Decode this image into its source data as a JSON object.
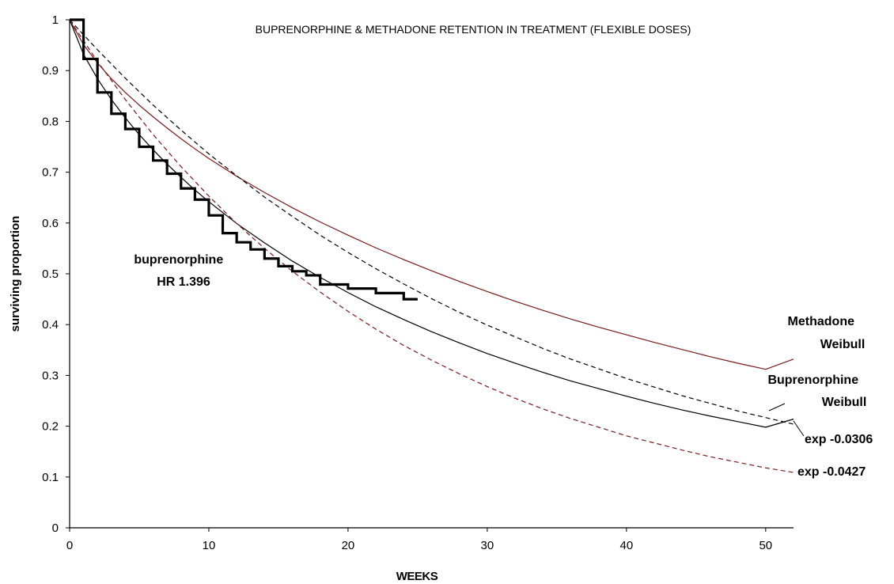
{
  "chart_data": {
    "type": "line",
    "title": "BUPRENORPHINE & METHADONE RETENTION IN TREATMENT (FLEXIBLE DOSES)",
    "xlabel": "WEEKS",
    "ylabel": "surviving proportion",
    "xlim": [
      0,
      52
    ],
    "ylim": [
      0,
      1
    ],
    "x_ticks": [
      "0",
      "10",
      "20",
      "30",
      "40",
      "50"
    ],
    "y_ticks": [
      "0",
      "0.1",
      "0.2",
      "0.3",
      "0.4",
      "0.5",
      "0.6",
      "0.7",
      "0.8",
      "0.9",
      "1"
    ],
    "grid": false,
    "legend": "none",
    "series": [
      {
        "name": "Methadone Weibull",
        "style": "solid",
        "color": "#7a1a1a",
        "x": [
          0,
          1,
          2,
          3,
          4,
          5,
          6,
          7,
          8,
          9,
          10,
          12,
          14,
          16,
          18,
          20,
          22,
          24,
          26,
          28,
          30,
          32,
          34,
          36,
          38,
          40,
          42,
          44,
          46,
          48,
          50,
          52
        ],
        "y": [
          1.0,
          0.951,
          0.915,
          0.884,
          0.857,
          0.832,
          0.809,
          0.787,
          0.766,
          0.746,
          0.727,
          0.692,
          0.66,
          0.63,
          0.602,
          0.576,
          0.551,
          0.528,
          0.506,
          0.485,
          0.465,
          0.446,
          0.428,
          0.411,
          0.395,
          0.38,
          0.365,
          0.351,
          0.337,
          0.324,
          0.312,
          0.332
        ]
      },
      {
        "name": "Buprenorphine Weibull",
        "style": "solid",
        "color": "#000000",
        "x": [
          0,
          1,
          2,
          3,
          4,
          5,
          6,
          7,
          8,
          9,
          10,
          12,
          14,
          16,
          18,
          20,
          22,
          24,
          26,
          28,
          30,
          32,
          34,
          36,
          38,
          40,
          42,
          44,
          46,
          48,
          50,
          52
        ],
        "y": [
          1.0,
          0.932,
          0.884,
          0.843,
          0.807,
          0.774,
          0.744,
          0.716,
          0.69,
          0.665,
          0.642,
          0.599,
          0.561,
          0.525,
          0.493,
          0.463,
          0.435,
          0.41,
          0.386,
          0.364,
          0.343,
          0.324,
          0.306,
          0.289,
          0.274,
          0.259,
          0.245,
          0.232,
          0.22,
          0.209,
          0.198,
          0.214
        ]
      },
      {
        "name": "exp -0.0306",
        "style": "dashed",
        "color": "#000000",
        "x": [
          0,
          2,
          4,
          6,
          8,
          10,
          12,
          14,
          16,
          18,
          20,
          22,
          24,
          26,
          28,
          30,
          32,
          34,
          36,
          38,
          40,
          42,
          44,
          46,
          48,
          50,
          52
        ],
        "y": [
          1.0,
          0.941,
          0.885,
          0.832,
          0.783,
          0.736,
          0.693,
          0.651,
          0.613,
          0.576,
          0.542,
          0.51,
          0.48,
          0.451,
          0.424,
          0.399,
          0.376,
          0.353,
          0.332,
          0.313,
          0.294,
          0.277,
          0.26,
          0.245,
          0.23,
          0.217,
          0.204
        ]
      },
      {
        "name": "exp -0.0427",
        "style": "dashed",
        "color": "#7a1a1a",
        "x": [
          0,
          2,
          4,
          6,
          8,
          10,
          12,
          14,
          16,
          18,
          20,
          22,
          24,
          26,
          28,
          30,
          32,
          34,
          36,
          38,
          40,
          42,
          44,
          46,
          48,
          50,
          52
        ],
        "y": [
          1.0,
          0.918,
          0.843,
          0.774,
          0.711,
          0.653,
          0.599,
          0.55,
          0.505,
          0.464,
          0.426,
          0.391,
          0.359,
          0.33,
          0.303,
          0.278,
          0.255,
          0.234,
          0.215,
          0.198,
          0.181,
          0.167,
          0.153,
          0.14,
          0.129,
          0.118,
          0.109
        ]
      },
      {
        "name": "buprenorphine HR 1.396",
        "style": "step",
        "color": "#000000",
        "x": [
          0,
          1,
          2,
          3,
          4,
          5,
          6,
          7,
          8,
          9,
          10,
          11,
          12,
          13,
          14,
          15,
          16,
          17,
          18,
          20,
          22,
          24,
          25
        ],
        "y": [
          1.0,
          0.923,
          0.857,
          0.815,
          0.785,
          0.75,
          0.723,
          0.697,
          0.668,
          0.646,
          0.615,
          0.58,
          0.562,
          0.548,
          0.53,
          0.515,
          0.505,
          0.497,
          0.479,
          0.471,
          0.462,
          0.45,
          0.45
        ]
      }
    ],
    "annotations": [
      {
        "lines": [
          "Methadone",
          "Weibull"
        ]
      },
      {
        "lines": [
          "Buprenorphine",
          "Weibull"
        ]
      },
      {
        "lines": [
          "exp -0.0306"
        ]
      },
      {
        "lines": [
          "exp -0.0427"
        ]
      },
      {
        "lines": [
          "buprenorphine",
          "HR 1.396"
        ]
      }
    ]
  }
}
